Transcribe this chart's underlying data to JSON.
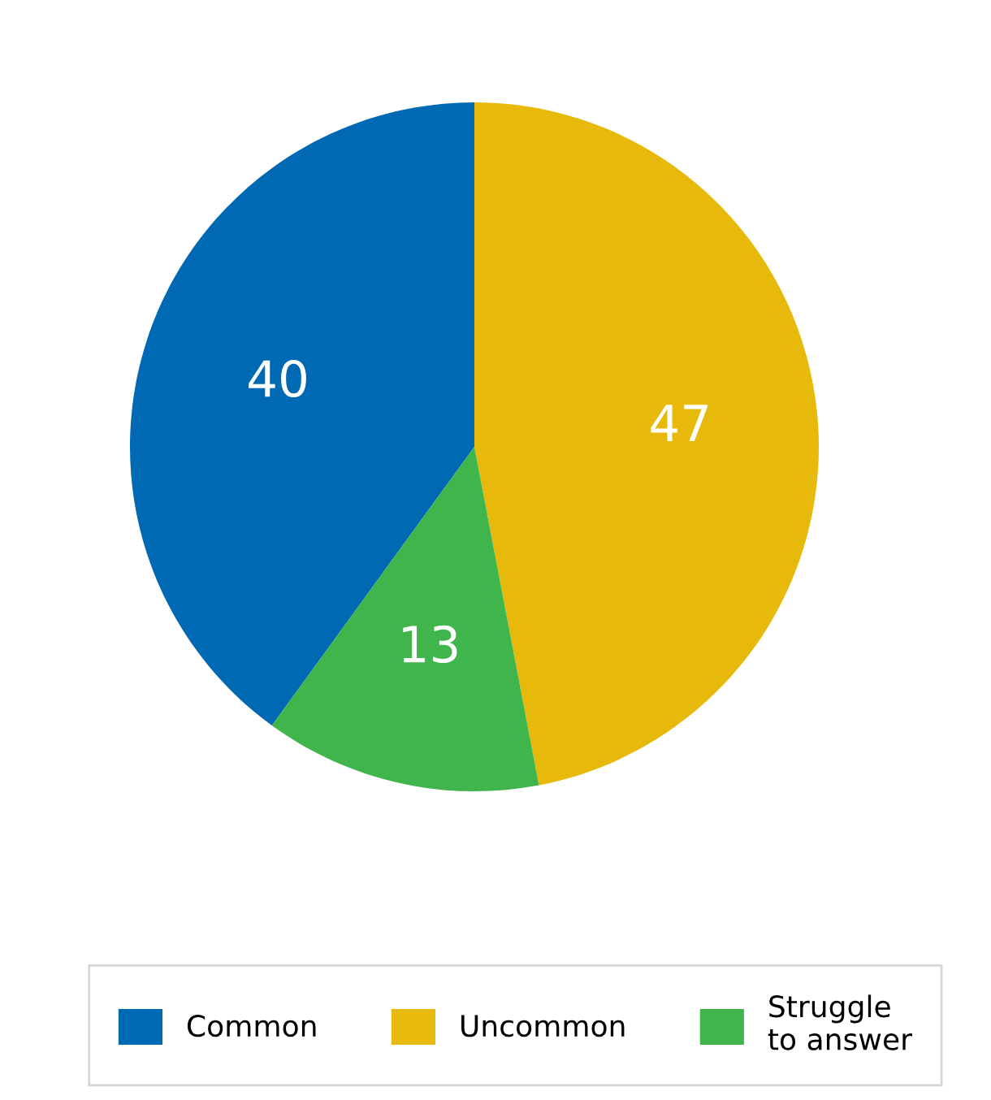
{
  "chart_data": {
    "type": "pie",
    "categories": [
      "Common",
      "Uncommon",
      "Struggle\nto answer"
    ],
    "values": [
      40,
      47,
      13
    ],
    "colors": [
      "#0069b4",
      "#e6b90a",
      "#40b54b"
    ],
    "data_labels": true,
    "legend": "bottom"
  }
}
